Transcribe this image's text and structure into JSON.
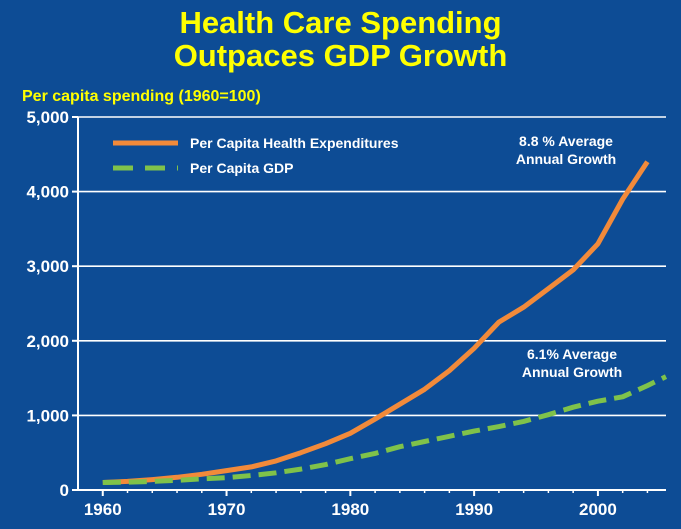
{
  "title": {
    "line1": "Health Care Spending",
    "line2": "Outpaces GDP Growth"
  },
  "colors": {
    "background": "#0d4c95",
    "title": "#ffff00",
    "health": "#f28a3a",
    "gdp": "#7fc24a",
    "grid": "#ffffff"
  },
  "chart_data": {
    "type": "line",
    "ylabel": "Per capita spending (1960=100)",
    "xlim": [
      1958,
      2005.5
    ],
    "ylim": [
      0,
      5000
    ],
    "x_ticks": [
      1960,
      1970,
      1980,
      1990,
      2000
    ],
    "y_ticks": [
      {
        "value": 0,
        "label": "0"
      },
      {
        "value": 1000,
        "label": "1,000"
      },
      {
        "value": 2000,
        "label": "2,000"
      },
      {
        "value": 3000,
        "label": "3,000"
      },
      {
        "value": 4000,
        "label": "4,000"
      },
      {
        "value": 5000,
        "label": "5,000"
      }
    ],
    "grid": "horizontal",
    "legend_position": "top-left",
    "series": [
      {
        "name": "Per Capita Health Expenditures",
        "style": "solid",
        "x": [
          1960,
          1962,
          1964,
          1966,
          1968,
          1970,
          1972,
          1974,
          1976,
          1978,
          1980,
          1982,
          1984,
          1986,
          1988,
          1990,
          1992,
          1994,
          1996,
          1998,
          2000,
          2002,
          2004
        ],
        "y": [
          100,
          115,
          140,
          170,
          210,
          260,
          310,
          390,
          500,
          620,
          760,
          950,
          1150,
          1350,
          1600,
          1900,
          2250,
          2450,
          2700,
          2950,
          3300,
          3900,
          4400
        ]
      },
      {
        "name": "Per Capita GDP",
        "style": "dashed",
        "x": [
          1960,
          1962,
          1964,
          1966,
          1968,
          1970,
          1972,
          1974,
          1976,
          1978,
          1980,
          1982,
          1984,
          1986,
          1988,
          1990,
          1992,
          1994,
          1996,
          1998,
          2000,
          2002,
          2004,
          2005.5
        ],
        "y": [
          100,
          105,
          115,
          130,
          150,
          165,
          195,
          230,
          280,
          340,
          420,
          490,
          580,
          650,
          720,
          790,
          850,
          920,
          1010,
          1110,
          1190,
          1250,
          1400,
          1520
        ]
      }
    ],
    "annotations": [
      {
        "line1": "8.8 % Average",
        "line2": "Annual Growth"
      },
      {
        "line1": "6.1% Average",
        "line2": "Annual Growth"
      }
    ]
  }
}
